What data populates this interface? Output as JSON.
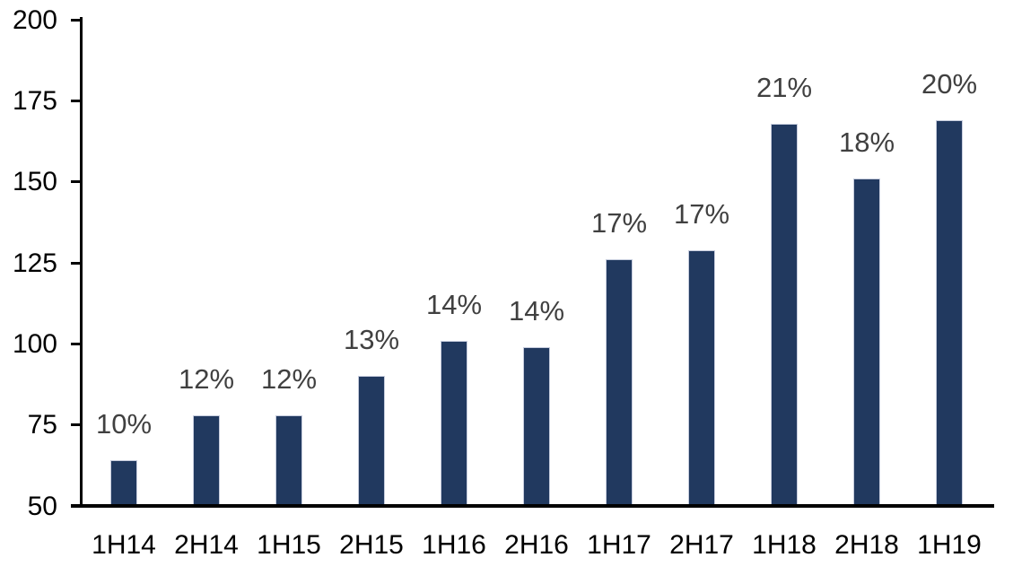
{
  "chart_data": {
    "type": "bar",
    "title": "",
    "xlabel": "",
    "ylabel": "",
    "categories": [
      "1H14",
      "2H14",
      "1H15",
      "2H15",
      "1H16",
      "2H16",
      "1H17",
      "2H17",
      "1H18",
      "2H18",
      "1H19"
    ],
    "values": [
      64,
      78,
      78,
      90,
      101,
      99,
      126,
      129,
      168,
      151,
      169
    ],
    "bar_labels": [
      "10%",
      "12%",
      "12%",
      "13%",
      "14%",
      "14%",
      "17%",
      "17%",
      "21%",
      "18%",
      "20%"
    ],
    "ylim": [
      50,
      200
    ],
    "yticks": [
      50,
      75,
      100,
      125,
      150,
      175,
      200
    ],
    "grid": false,
    "legend": false,
    "colors": {
      "bar_fill": "#21395F",
      "bar_edge": "#C6CCDD",
      "data_label": "#404040",
      "axis": "#000000",
      "tick_label": "#000000",
      "background": "#FFFFFF"
    }
  }
}
